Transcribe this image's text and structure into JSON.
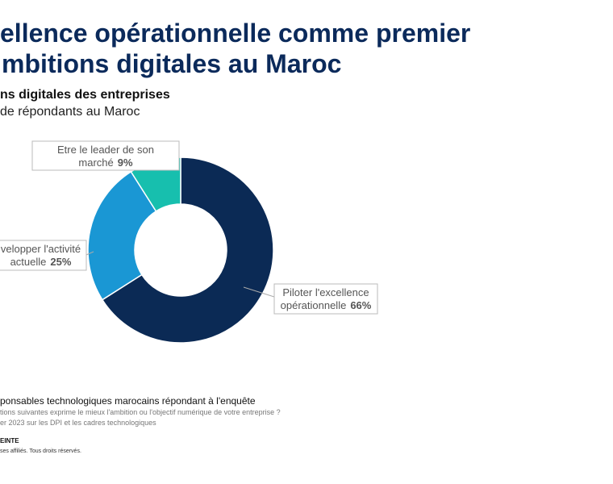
{
  "chart_data": {
    "type": "donut",
    "title": [
      "ellence opérationnelle comme premier",
      "mbitions digitales au Maroc"
    ],
    "subtitle": [
      "ns digitales des entreprises",
      "de répondants au Maroc"
    ],
    "categories": [
      "Piloter l'excellence opérationnelle",
      "velopper l'activité actuelle",
      "Etre le leader de son marché"
    ],
    "values": [
      66,
      25,
      9
    ],
    "value_labels": [
      "66%",
      "25%",
      "9%"
    ],
    "colors": [
      "#0b2a55",
      "#1a97d4",
      "#17bfae"
    ],
    "footer": [
      "ponsables technologiques marocains répondant à l'enquête",
      "tions suivantes exprime le mieux l'ambition ou l'objectif numérique de votre entreprise ?",
      "er 2023 sur les DPI et les cadres technologiques",
      "EINTE",
      "ses affiliés. Tous droits réservés."
    ]
  }
}
